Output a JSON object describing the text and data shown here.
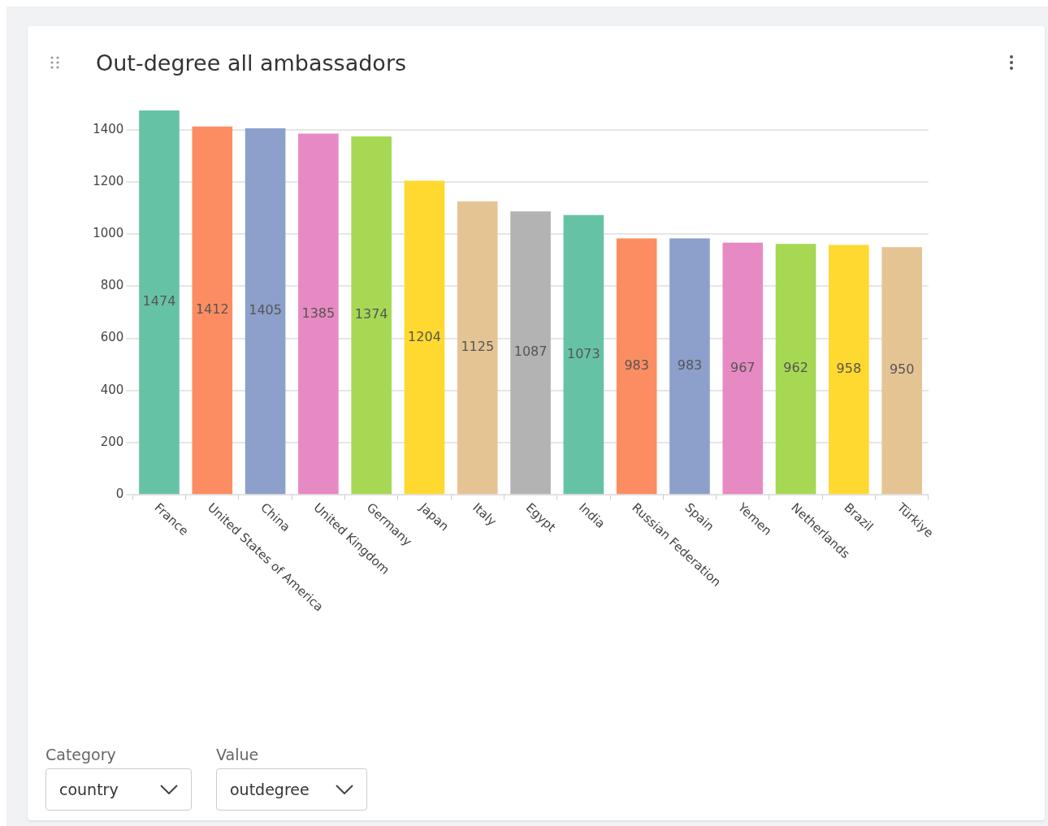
{
  "chart_data": {
    "type": "bar",
    "title": "Out-degree all ambassadors",
    "categories": [
      "France",
      "United States of America",
      "China",
      "United Kingdom",
      "Germany",
      "Japan",
      "Italy",
      "Egypt",
      "India",
      "Russian Federation",
      "Spain",
      "Yemen",
      "Netherlands",
      "Brazil",
      "Türkiye"
    ],
    "values": [
      1474,
      1412,
      1405,
      1385,
      1374,
      1204,
      1125,
      1087,
      1073,
      983,
      983,
      967,
      962,
      958,
      950
    ],
    "colors": [
      "#66c2a5",
      "#fc8d62",
      "#8da0cb",
      "#e78ac3",
      "#a6d854",
      "#ffd92f",
      "#e5c494",
      "#b3b3b3",
      "#66c2a5",
      "#fc8d62",
      "#8da0cb",
      "#e78ac3",
      "#a6d854",
      "#ffd92f",
      "#e5c494"
    ],
    "ylim": [
      0,
      1480
    ],
    "yticks": [
      0,
      200,
      400,
      600,
      800,
      1000,
      1200,
      1400
    ],
    "grid": "y",
    "data_labels": true,
    "annotations": [
      "Category",
      "country",
      "Value",
      "outdegree"
    ]
  }
}
